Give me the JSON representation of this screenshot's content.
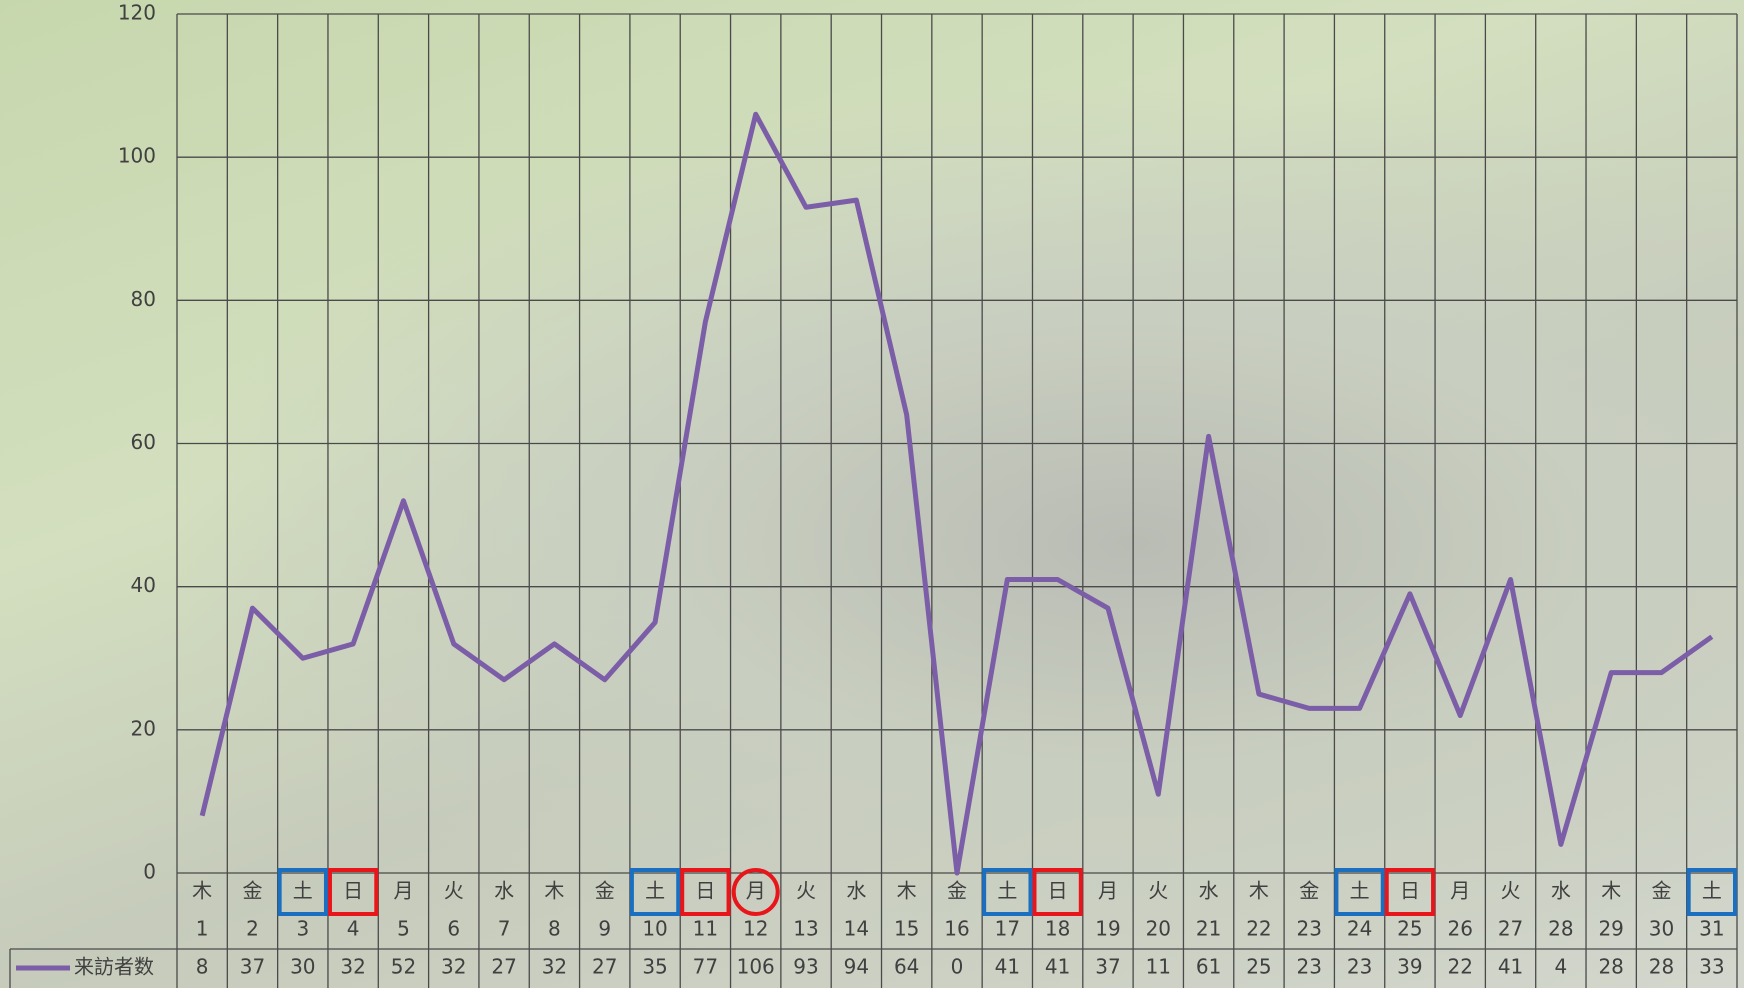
{
  "chart_data": {
    "type": "line",
    "categories": [
      "1",
      "2",
      "3",
      "4",
      "5",
      "6",
      "7",
      "8",
      "9",
      "10",
      "11",
      "12",
      "13",
      "14",
      "15",
      "16",
      "17",
      "18",
      "19",
      "20",
      "21",
      "22",
      "23",
      "24",
      "25",
      "26",
      "27",
      "28",
      "29",
      "30",
      "31"
    ],
    "weekdays": [
      "木",
      "金",
      "土",
      "日",
      "月",
      "火",
      "水",
      "木",
      "金",
      "土",
      "日",
      "月",
      "火",
      "水",
      "木",
      "金",
      "土",
      "日",
      "月",
      "火",
      "水",
      "木",
      "金",
      "土",
      "日",
      "月",
      "火",
      "水",
      "木",
      "金",
      "土"
    ],
    "frames": [
      null,
      null,
      {
        "shape": "box",
        "color": "#1a6fc0"
      },
      {
        "shape": "box",
        "color": "#e8151b"
      },
      null,
      null,
      null,
      null,
      null,
      {
        "shape": "box",
        "color": "#1a6fc0"
      },
      {
        "shape": "box",
        "color": "#e8151b"
      },
      {
        "shape": "circle",
        "color": "#e8151b"
      },
      null,
      null,
      null,
      null,
      {
        "shape": "box",
        "color": "#1a6fc0"
      },
      {
        "shape": "box",
        "color": "#e8151b"
      },
      null,
      null,
      null,
      null,
      null,
      {
        "shape": "box",
        "color": "#1a6fc0"
      },
      {
        "shape": "box",
        "color": "#e8151b"
      },
      null,
      null,
      null,
      null,
      null,
      {
        "shape": "box",
        "color": "#1a6fc0"
      }
    ],
    "series": [
      {
        "name": "来訪者数",
        "color": "#7b5ea7",
        "values": [
          8,
          37,
          30,
          32,
          52,
          32,
          27,
          32,
          27,
          35,
          77,
          106,
          93,
          94,
          64,
          0,
          41,
          41,
          37,
          11,
          61,
          25,
          23,
          23,
          39,
          22,
          41,
          4,
          28,
          28,
          33
        ]
      }
    ],
    "ylim": [
      0,
      120
    ],
    "yticks": [
      0,
      20,
      40,
      60,
      80,
      100,
      120
    ],
    "grid": true
  }
}
